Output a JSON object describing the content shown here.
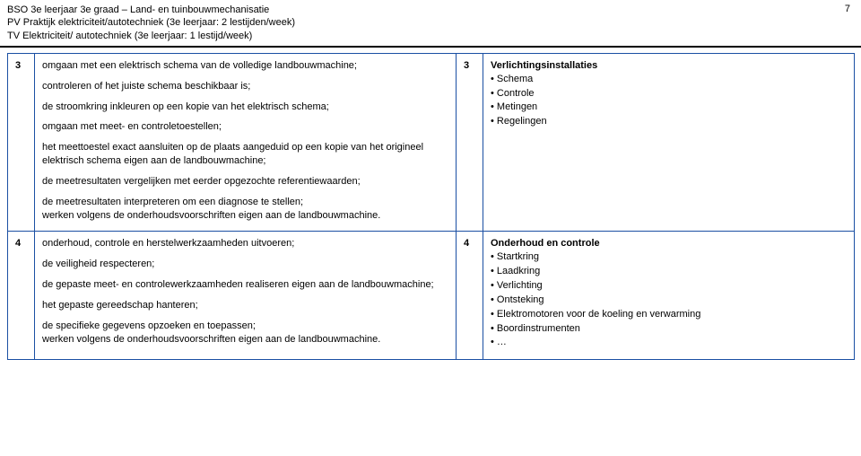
{
  "header": {
    "line1": "BSO 3e leerjaar 3e graad – Land- en tuinbouwmechanisatie",
    "line2": "PV Praktijk elektriciteit/autotechniek (3e leerjaar: 2 lestijden/week)",
    "line3": "TV Elektriciteit/ autotechniek (3e leerjaar: 1 lestijd/week)",
    "page": "7"
  },
  "row3": {
    "num_left": "3",
    "left_paras": [
      "omgaan met een elektrisch schema van de volledige landbouwmachine;",
      "controleren of het juiste schema beschikbaar is;",
      "de stroomkring inkleuren op een kopie van het elektrisch schema;",
      "omgaan met meet- en controletoestellen;",
      "het meettoestel exact aansluiten op de plaats aangeduid op een kopie van het origineel elektrisch schema eigen aan de landbouwmachine;",
      "de meetresultaten vergelijken met eerder opgezochte referentiewaarden;",
      "de meetresultaten interpreteren om een diagnose te stellen;",
      "werken volgens de onderhoudsvoorschriften eigen aan de landbouwmachine."
    ],
    "num_right": "3",
    "right_title": "Verlichtingsinstallaties",
    "right_bullets": [
      "Schema",
      "Controle",
      "Metingen",
      "Regelingen"
    ]
  },
  "row4": {
    "num_left": "4",
    "left_paras": [
      "onderhoud, controle en herstelwerkzaamheden uitvoeren;",
      "de veiligheid respecteren;",
      "de gepaste meet- en controlewerkzaamheden realiseren eigen aan de landbouwmachine;",
      "het gepaste gereedschap hanteren;",
      "de specifieke gegevens opzoeken en toepassen;",
      "werken volgens de onderhoudsvoorschriften eigen aan de landbouwmachine."
    ],
    "num_right": "4",
    "right_title": "Onderhoud en controle",
    "right_bullets": [
      "Startkring",
      "Laadkring",
      "Verlichting",
      "Ontsteking",
      "Elektromotoren voor de koeling en verwarming",
      "Boordinstrumenten",
      "…"
    ]
  }
}
